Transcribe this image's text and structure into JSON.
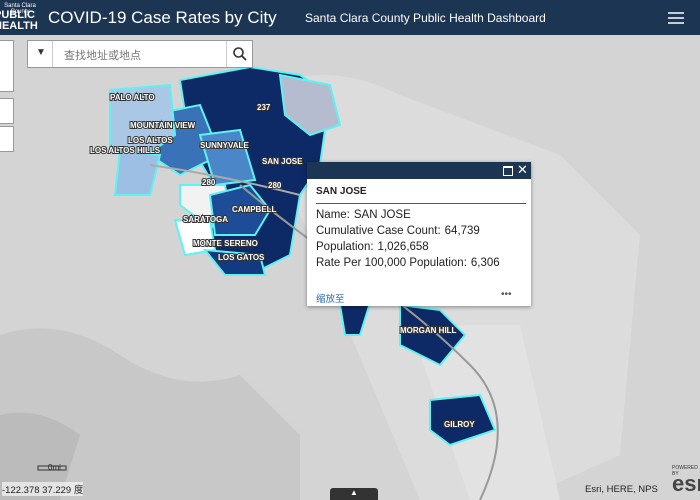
{
  "header": {
    "logo_top": "Santa Clara County",
    "logo_bottom": "PUBLIC HEALTH",
    "title": "COVID-19 Case Rates by City",
    "subtitle": "Santa Clara County Public Health Dashboard"
  },
  "search": {
    "placeholder": "查找地址或地点"
  },
  "map": {
    "cities": [
      "PALO ALTO",
      "MOUNTAIN VIEW",
      "LOS ALTOS",
      "LOS ALTOS HILLS",
      "SUNNYVALE",
      "SAN JOSE",
      "CAMPBELL",
      "SARATOGA",
      "MONTE SERENO",
      "LOS GATOS",
      "MORGAN HILL",
      "GILROY"
    ],
    "roads": [
      "237",
      "280",
      "280"
    ]
  },
  "popup": {
    "title": "SAN JOSE",
    "fields": [
      {
        "label": "Name:",
        "value": "SAN JOSE"
      },
      {
        "label": "Cumulative Case Count:",
        "value": "64,739"
      },
      {
        "label": "Population:",
        "value": "1,026,658"
      },
      {
        "label": "Rate Per 100,000 Population:",
        "value": "6,306"
      }
    ],
    "zoom": "缩放至",
    "more": "•••"
  },
  "footer": {
    "scale": "0mi",
    "coordinates": "-122.378 37.229 度",
    "attribution": "Esri, HERE, NPS",
    "powered": "POWERED BY",
    "logo": "esri"
  }
}
